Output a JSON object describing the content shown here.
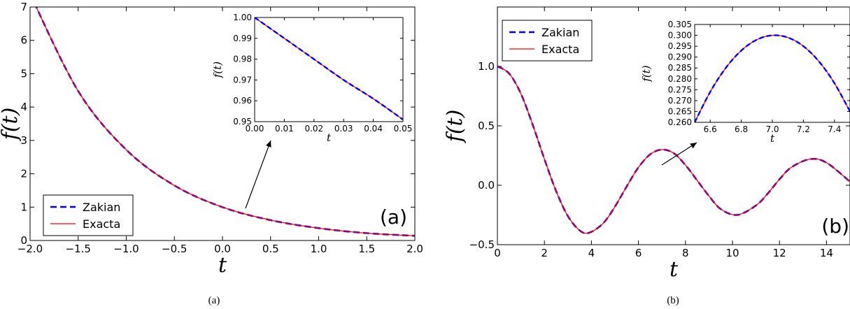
{
  "chart_data": [
    {
      "type": "line",
      "panel": "(a)",
      "caption": "(a)",
      "xlabel": "t",
      "ylabel": "f(t)",
      "xlim": [
        -2.0,
        2.0
      ],
      "ylim": [
        0,
        7
      ],
      "xticks": [
        "−2.0",
        "−1.5",
        "−1.0",
        "−0.5",
        "0.0",
        "0.5",
        "1.0",
        "1.5",
        "2.0"
      ],
      "yticks": [
        "0",
        "1",
        "2",
        "3",
        "4",
        "5",
        "6",
        "7"
      ],
      "legend": {
        "position": "lower-left",
        "entries": [
          "Zakian",
          "Exacta"
        ]
      },
      "series": [
        {
          "name": "Zakian",
          "style": "dashed",
          "color": "#0000ff",
          "x": [
            -2.0,
            -1.5,
            -1.0,
            -0.5,
            0.0,
            0.5,
            1.0,
            1.5,
            2.0
          ],
          "y": [
            7.39,
            4.48,
            2.72,
            1.65,
            1.0,
            0.61,
            0.37,
            0.22,
            0.14
          ]
        },
        {
          "name": "Exacta",
          "style": "solid",
          "color": "#ff0000",
          "x": [
            -2.0,
            -1.5,
            -1.0,
            -0.5,
            0.0,
            0.5,
            1.0,
            1.5,
            2.0
          ],
          "y": [
            7.39,
            4.48,
            2.72,
            1.65,
            1.0,
            0.61,
            0.37,
            0.22,
            0.14
          ]
        }
      ],
      "inset": {
        "xlabel": "t",
        "ylabel": "f(t)",
        "xlim": [
          0.0,
          0.05
        ],
        "ylim": [
          0.95,
          1.0
        ],
        "xticks": [
          "0.00",
          "0.01",
          "0.02",
          "0.03",
          "0.04",
          "0.05"
        ],
        "yticks": [
          "0.95",
          "0.96",
          "0.97",
          "0.98",
          "0.99",
          "1.00"
        ],
        "series_x": [
          0.0,
          0.01,
          0.02,
          0.03,
          0.04,
          0.05
        ],
        "series_y": [
          1.0,
          0.99,
          0.98,
          0.97,
          0.961,
          0.951
        ]
      }
    },
    {
      "type": "line",
      "panel": "(b)",
      "caption": "(b)",
      "xlabel": "t",
      "ylabel": "f(t)",
      "xlim": [
        0,
        15
      ],
      "ylim": [
        -0.5,
        1.5
      ],
      "xticks": [
        "0",
        "2",
        "4",
        "6",
        "8",
        "10",
        "12",
        "14"
      ],
      "yticks": [
        "−0.5",
        "0.0",
        "0.5",
        "1.0"
      ],
      "legend": {
        "position": "upper-left",
        "entries": [
          "Zakian",
          "Exacta"
        ]
      },
      "series": [
        {
          "name": "Zakian",
          "style": "dashed",
          "color": "#0000ff",
          "x": [
            0,
            0.5,
            1,
            1.5,
            2,
            2.5,
            3,
            3.5,
            3.9,
            4.5,
            5,
            5.5,
            6,
            6.5,
            7.0,
            7.5,
            8,
            8.5,
            9,
            9.5,
            10.2,
            11,
            11.5,
            12,
            12.5,
            13.3,
            14,
            15
          ],
          "y": [
            1.0,
            0.94,
            0.77,
            0.51,
            0.22,
            -0.05,
            -0.26,
            -0.38,
            -0.4,
            -0.32,
            -0.18,
            -0.01,
            0.15,
            0.26,
            0.3,
            0.27,
            0.17,
            0.04,
            -0.09,
            -0.2,
            -0.25,
            -0.17,
            -0.07,
            0.05,
            0.15,
            0.22,
            0.19,
            0.03
          ]
        },
        {
          "name": "Exacta",
          "style": "solid",
          "color": "#ff0000",
          "x": [
            0,
            0.5,
            1,
            1.5,
            2,
            2.5,
            3,
            3.5,
            3.9,
            4.5,
            5,
            5.5,
            6,
            6.5,
            7.0,
            7.5,
            8,
            8.5,
            9,
            9.5,
            10.2,
            11,
            11.5,
            12,
            12.5,
            13.3,
            14,
            15
          ],
          "y": [
            1.0,
            0.94,
            0.77,
            0.51,
            0.22,
            -0.05,
            -0.26,
            -0.38,
            -0.4,
            -0.32,
            -0.18,
            -0.01,
            0.15,
            0.26,
            0.3,
            0.27,
            0.17,
            0.04,
            -0.09,
            -0.2,
            -0.25,
            -0.17,
            -0.07,
            0.05,
            0.15,
            0.22,
            0.19,
            0.03
          ]
        }
      ],
      "inset": {
        "xlabel": "t",
        "ylabel": "f(t)",
        "xlim": [
          6.5,
          7.5
        ],
        "ylim": [
          0.26,
          0.305
        ],
        "xticks": [
          "6.6",
          "6.8",
          "7.0",
          "7.2",
          "7.4"
        ],
        "yticks": [
          "0.260",
          "0.265",
          "0.270",
          "0.275",
          "0.280",
          "0.285",
          "0.290",
          "0.295",
          "0.300",
          "0.305"
        ],
        "series_x": [
          6.5,
          6.6,
          6.7,
          6.8,
          6.9,
          7.0,
          7.1,
          7.2,
          7.3,
          7.4,
          7.5
        ],
        "series_y": [
          0.26,
          0.274,
          0.285,
          0.293,
          0.298,
          0.3,
          0.299,
          0.295,
          0.288,
          0.278,
          0.265
        ]
      }
    }
  ]
}
